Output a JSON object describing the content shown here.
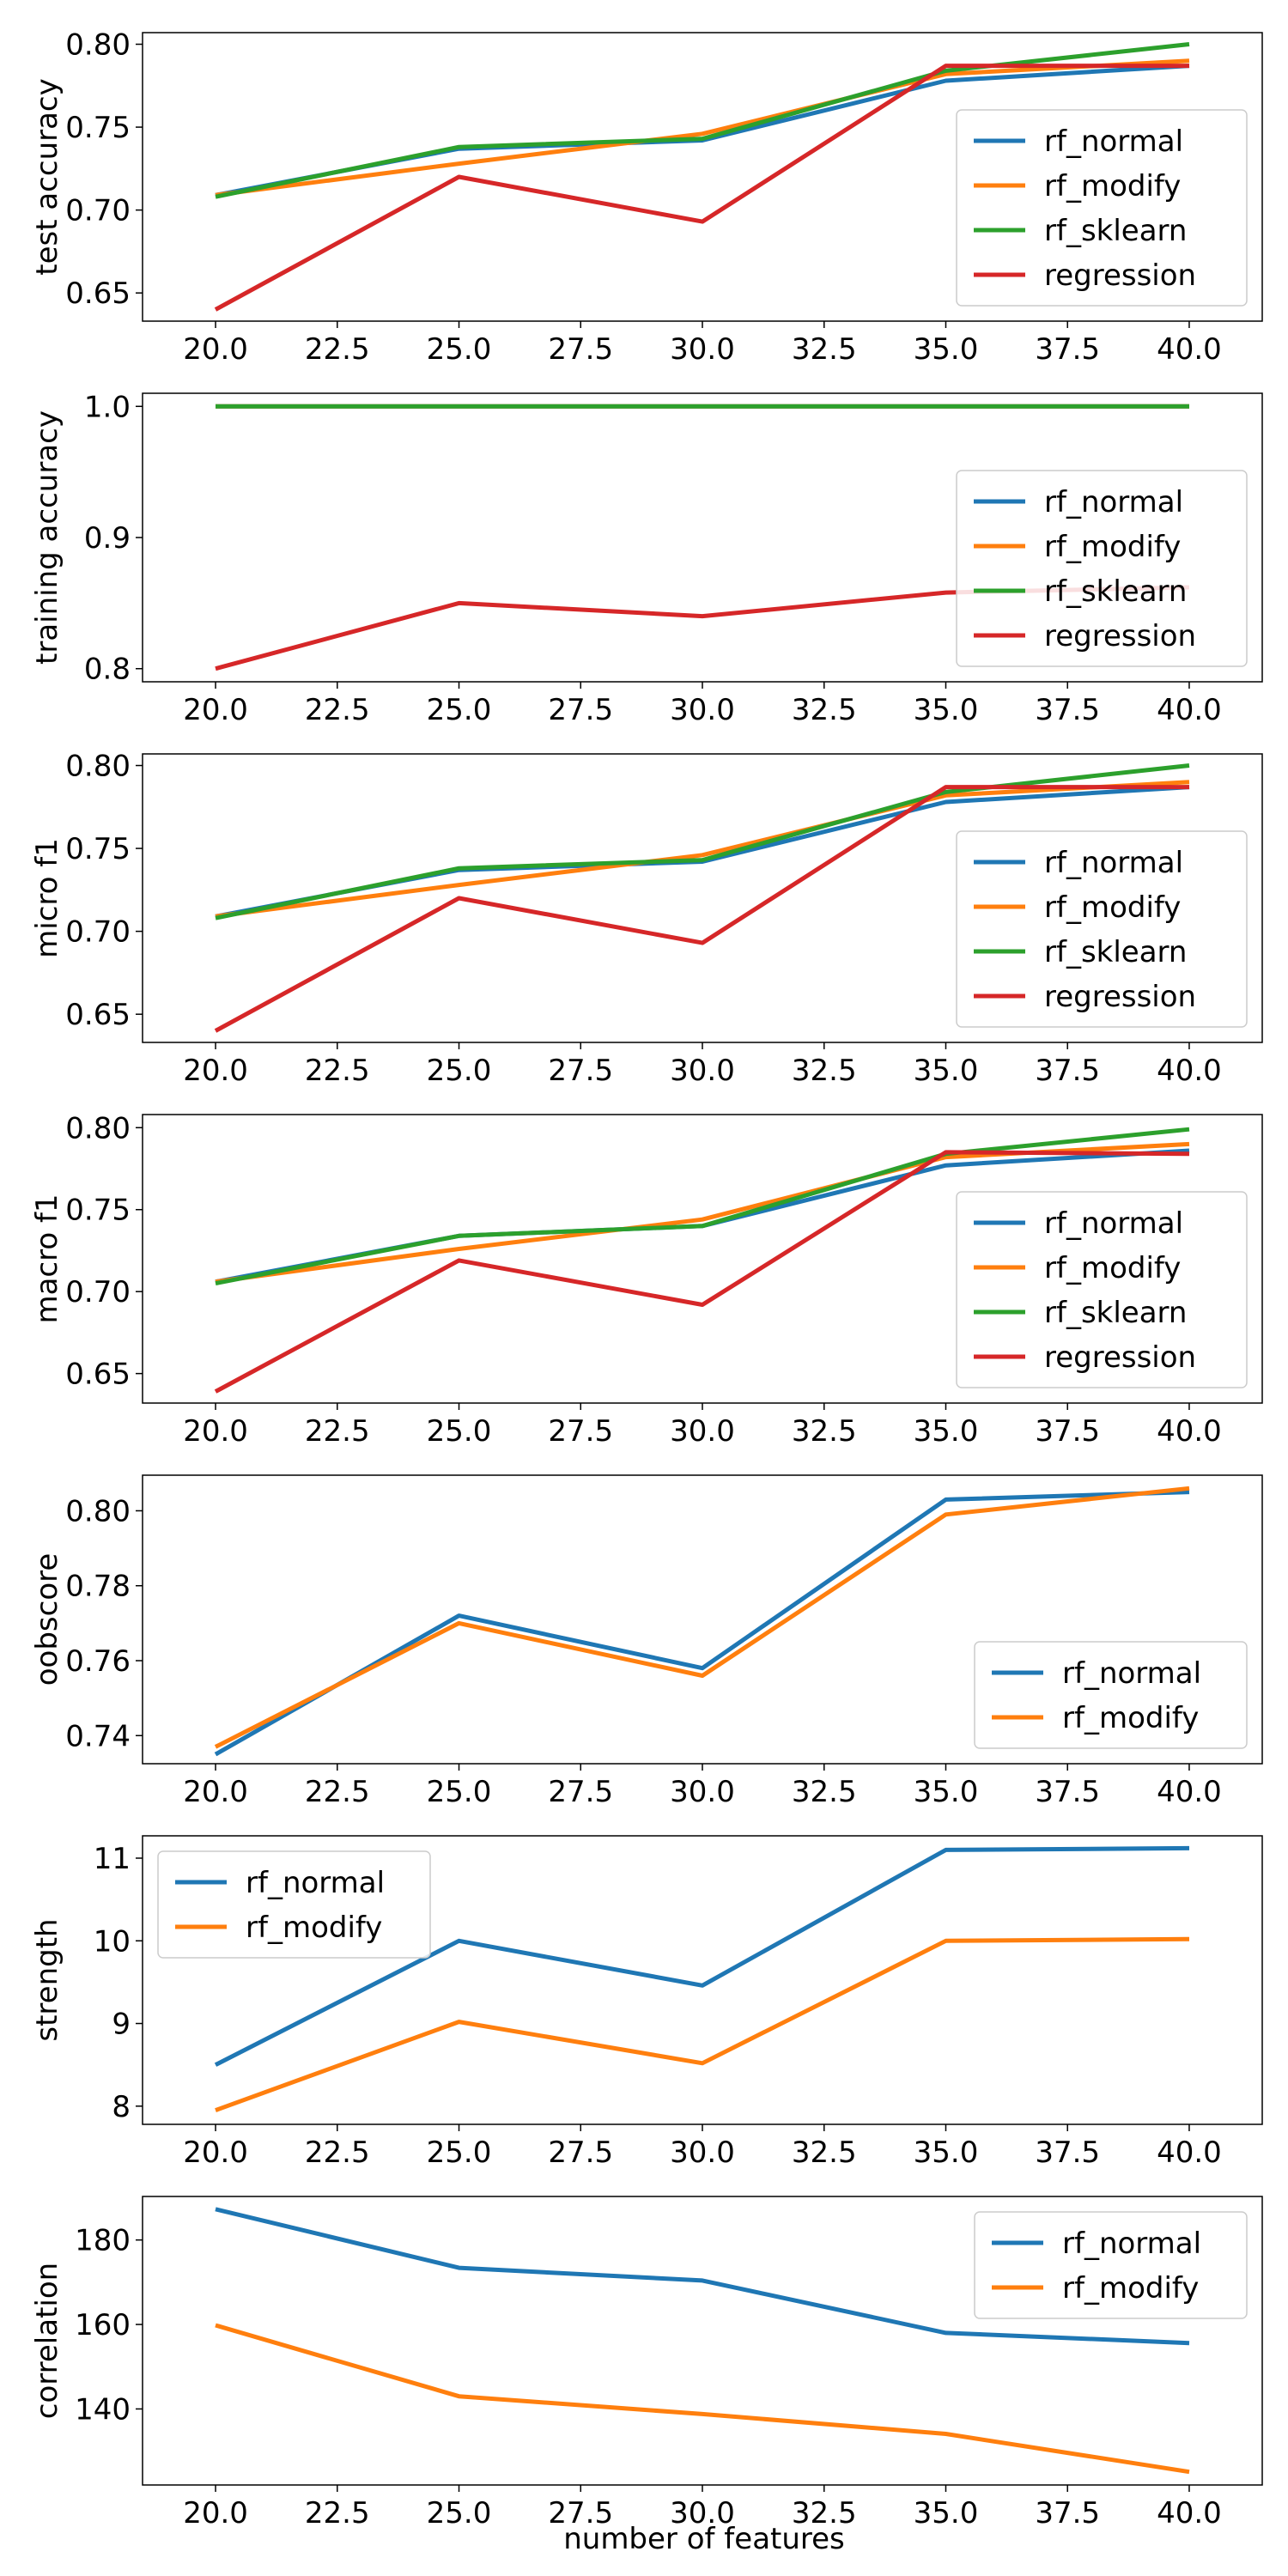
{
  "colors": {
    "rf_normal": "#1f77b4",
    "rf_modify": "#ff7f0e",
    "rf_sklearn": "#2ca02c",
    "regression": "#d62728"
  },
  "xlabel": "number of features",
  "chart_data": [
    {
      "type": "line",
      "ylabel": "test accuracy",
      "x": [
        20,
        25,
        30,
        35,
        40
      ],
      "xlim": [
        18.5,
        41.5
      ],
      "xticks": [
        "20.0",
        "22.5",
        "25.0",
        "27.5",
        "30.0",
        "32.5",
        "35.0",
        "37.5",
        "40.0"
      ],
      "ylim": [
        0.633,
        0.807
      ],
      "yticks": [
        "0.65",
        "0.70",
        "0.75",
        "0.80"
      ],
      "legend": "lower-right",
      "series": [
        {
          "name": "rf_normal",
          "values": [
            0.709,
            0.737,
            0.742,
            0.778,
            0.787
          ]
        },
        {
          "name": "rf_modify",
          "values": [
            0.709,
            0.728,
            0.746,
            0.782,
            0.79
          ]
        },
        {
          "name": "rf_sklearn",
          "values": [
            0.708,
            0.738,
            0.743,
            0.784,
            0.8
          ]
        },
        {
          "name": "regression",
          "values": [
            0.64,
            0.72,
            0.693,
            0.787,
            0.787
          ]
        }
      ]
    },
    {
      "type": "line",
      "ylabel": "training accuracy",
      "x": [
        20,
        25,
        30,
        35,
        40
      ],
      "xlim": [
        18.5,
        41.5
      ],
      "xticks": [
        "20.0",
        "22.5",
        "25.0",
        "27.5",
        "30.0",
        "32.5",
        "35.0",
        "37.5",
        "40.0"
      ],
      "ylim": [
        0.79,
        1.01
      ],
      "yticks": [
        "0.8",
        "0.9",
        "1.0"
      ],
      "legend": "lower-right",
      "series": [
        {
          "name": "rf_normal",
          "values": [
            1.0,
            1.0,
            1.0,
            1.0,
            1.0
          ]
        },
        {
          "name": "rf_modify",
          "values": [
            1.0,
            1.0,
            1.0,
            1.0,
            1.0
          ]
        },
        {
          "name": "rf_sklearn",
          "values": [
            1.0,
            1.0,
            1.0,
            1.0,
            1.0
          ]
        },
        {
          "name": "regression",
          "values": [
            0.8,
            0.85,
            0.84,
            0.858,
            0.862
          ]
        }
      ]
    },
    {
      "type": "line",
      "ylabel": "micro f1",
      "x": [
        20,
        25,
        30,
        35,
        40
      ],
      "xlim": [
        18.5,
        41.5
      ],
      "xticks": [
        "20.0",
        "22.5",
        "25.0",
        "27.5",
        "30.0",
        "32.5",
        "35.0",
        "37.5",
        "40.0"
      ],
      "ylim": [
        0.633,
        0.807
      ],
      "yticks": [
        "0.65",
        "0.70",
        "0.75",
        "0.80"
      ],
      "legend": "lower-right",
      "series": [
        {
          "name": "rf_normal",
          "values": [
            0.709,
            0.737,
            0.742,
            0.778,
            0.787
          ]
        },
        {
          "name": "rf_modify",
          "values": [
            0.709,
            0.728,
            0.746,
            0.782,
            0.79
          ]
        },
        {
          "name": "rf_sklearn",
          "values": [
            0.708,
            0.738,
            0.743,
            0.784,
            0.8
          ]
        },
        {
          "name": "regression",
          "values": [
            0.64,
            0.72,
            0.693,
            0.787,
            0.787
          ]
        }
      ]
    },
    {
      "type": "line",
      "ylabel": "macro f1",
      "x": [
        20,
        25,
        30,
        35,
        40
      ],
      "xlim": [
        18.5,
        41.5
      ],
      "xticks": [
        "20.0",
        "22.5",
        "25.0",
        "27.5",
        "30.0",
        "32.5",
        "35.0",
        "37.5",
        "40.0"
      ],
      "ylim": [
        0.632,
        0.808
      ],
      "yticks": [
        "0.65",
        "0.70",
        "0.75",
        "0.80"
      ],
      "legend": "lower-right",
      "series": [
        {
          "name": "rf_normal",
          "values": [
            0.706,
            0.734,
            0.74,
            0.777,
            0.786
          ]
        },
        {
          "name": "rf_modify",
          "values": [
            0.706,
            0.726,
            0.744,
            0.782,
            0.79
          ]
        },
        {
          "name": "rf_sklearn",
          "values": [
            0.705,
            0.734,
            0.74,
            0.784,
            0.799
          ]
        },
        {
          "name": "regression",
          "values": [
            0.639,
            0.719,
            0.692,
            0.785,
            0.784
          ]
        }
      ]
    },
    {
      "type": "line",
      "ylabel": "oobscore",
      "x": [
        20,
        25,
        30,
        35,
        40
      ],
      "xlim": [
        18.5,
        41.5
      ],
      "xticks": [
        "20.0",
        "22.5",
        "25.0",
        "27.5",
        "30.0",
        "32.5",
        "35.0",
        "37.5",
        "40.0"
      ],
      "ylim": [
        0.7325,
        0.8095
      ],
      "yticks": [
        "0.74",
        "0.76",
        "0.78",
        "0.80"
      ],
      "legend": "lower-right",
      "series": [
        {
          "name": "rf_normal",
          "values": [
            0.735,
            0.772,
            0.758,
            0.803,
            0.805
          ]
        },
        {
          "name": "rf_modify",
          "values": [
            0.737,
            0.77,
            0.756,
            0.799,
            0.806
          ]
        }
      ]
    },
    {
      "type": "line",
      "ylabel": "strength",
      "x": [
        20,
        25,
        30,
        35,
        40
      ],
      "xlim": [
        18.5,
        41.5
      ],
      "xticks": [
        "20.0",
        "22.5",
        "25.0",
        "27.5",
        "30.0",
        "32.5",
        "35.0",
        "37.5",
        "40.0"
      ],
      "ylim": [
        7.78,
        11.27
      ],
      "yticks": [
        "8",
        "9",
        "10",
        "11"
      ],
      "legend": "upper-left",
      "series": [
        {
          "name": "rf_normal",
          "values": [
            8.5,
            10.0,
            9.46,
            11.1,
            11.12
          ]
        },
        {
          "name": "rf_modify",
          "values": [
            7.95,
            9.02,
            8.52,
            10.0,
            10.02
          ]
        }
      ]
    },
    {
      "type": "line",
      "ylabel": "correlation",
      "x": [
        20,
        25,
        30,
        35,
        40
      ],
      "xlim": [
        18.5,
        41.5
      ],
      "xticks": [
        "20.0",
        "22.5",
        "25.0",
        "27.5",
        "30.0",
        "32.5",
        "35.0",
        "37.5",
        "40.0"
      ],
      "ylim": [
        122.0,
        190.3
      ],
      "yticks": [
        "140",
        "160",
        "180"
      ],
      "legend": "upper-right",
      "series": [
        {
          "name": "rf_normal",
          "values": [
            187.3,
            173.4,
            170.4,
            158.0,
            155.6
          ]
        },
        {
          "name": "rf_modify",
          "values": [
            159.8,
            143.0,
            138.8,
            134.1,
            125.1
          ]
        }
      ]
    }
  ]
}
